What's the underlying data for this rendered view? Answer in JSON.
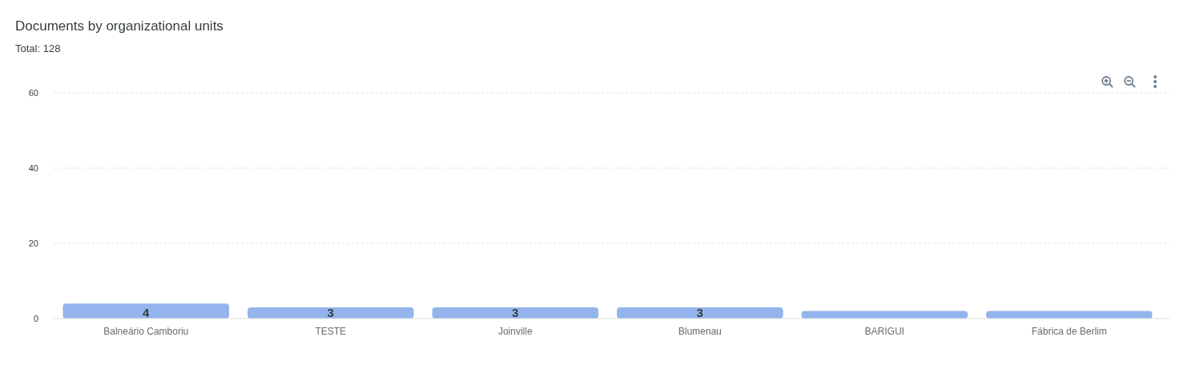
{
  "chart_data": {
    "type": "bar",
    "title": "Documents by organizational units",
    "subtitle": "Total: 128",
    "categories": [
      "Balneário Camboriu",
      "TESTE",
      "Joinville",
      "Blumenau",
      "BARIGUI",
      "Fábrica de Berlim"
    ],
    "values": [
      4,
      3,
      3,
      3,
      2,
      2
    ],
    "value_labels": [
      "4",
      "3",
      "3",
      "3",
      null,
      null
    ],
    "color": "#93b4ec",
    "ylim": [
      0,
      60
    ],
    "yticks": [
      0,
      20,
      40,
      60
    ],
    "grid": "y"
  }
}
